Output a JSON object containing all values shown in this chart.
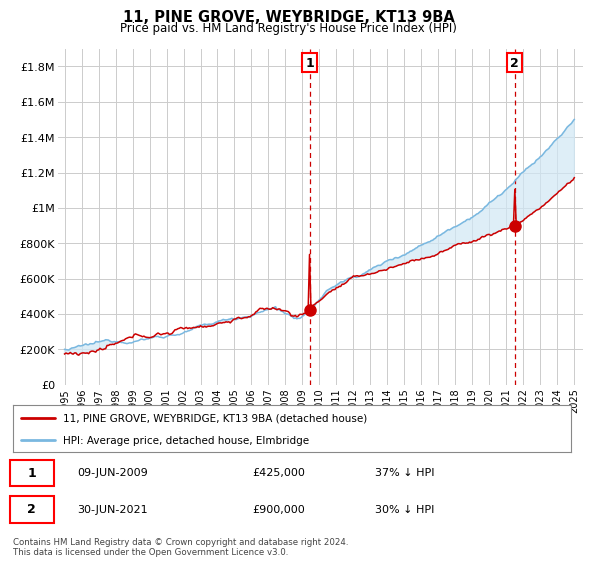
{
  "title": "11, PINE GROVE, WEYBRIDGE, KT13 9BA",
  "subtitle": "Price paid vs. HM Land Registry's House Price Index (HPI)",
  "ylim": [
    0,
    1900000
  ],
  "yticks": [
    0,
    200000,
    400000,
    600000,
    800000,
    1000000,
    1200000,
    1400000,
    1600000,
    1800000
  ],
  "ytick_labels": [
    "£0",
    "£200K",
    "£400K",
    "£600K",
    "£800K",
    "£1M",
    "£1.2M",
    "£1.4M",
    "£1.6M",
    "£1.8M"
  ],
  "hpi_color": "#7ab8e0",
  "hpi_fill_color": "#d0e8f5",
  "price_color": "#cc0000",
  "dashed_color": "#cc0000",
  "sale1_year": 2009.44,
  "sale1_value": 425000,
  "sale2_year": 2021.5,
  "sale2_value": 900000,
  "legend_label1": "11, PINE GROVE, WEYBRIDGE, KT13 9BA (detached house)",
  "legend_label2": "HPI: Average price, detached house, Elmbridge",
  "table_row1": [
    "1",
    "09-JUN-2009",
    "£425,000",
    "37% ↓ HPI"
  ],
  "table_row2": [
    "2",
    "30-JUN-2021",
    "£900,000",
    "30% ↓ HPI"
  ],
  "footer": "Contains HM Land Registry data © Crown copyright and database right 2024.\nThis data is licensed under the Open Government Licence v3.0.",
  "background_color": "#ffffff",
  "plot_bg_color": "#ffffff",
  "grid_color": "#cccccc",
  "x_start_year": 1995,
  "x_end_year": 2025
}
